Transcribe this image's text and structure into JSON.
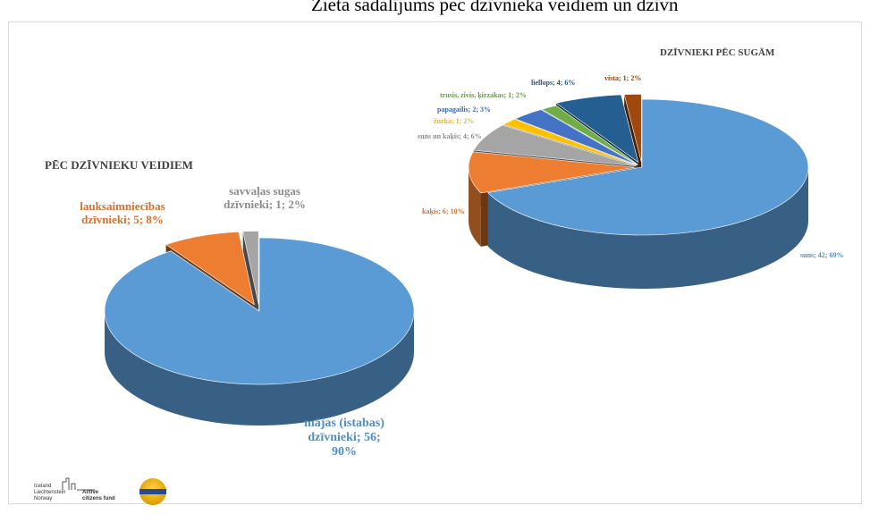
{
  "page_title": "Zieta sadalījums pēc dzīvnieka veidiem un dzīvn",
  "footer": {
    "logo_lines": [
      "Iceland",
      "Liechtenstein",
      "Norway"
    ],
    "logo_active": "Active",
    "logo_citizens": "citizens fund"
  },
  "chart_data": [
    {
      "type": "pie",
      "title": "PĒC DZĪVNIEKU VEIDIEM",
      "slices": [
        {
          "label": "mājas (istabas) dzīvnieki",
          "value": 56,
          "percent": 90,
          "color": "#5b9bd5",
          "label_text": [
            "mājas (istabas)",
            "dzīvnieki; 56;",
            "90%"
          ]
        },
        {
          "label": "lauksaimniecības dzīvnieki",
          "value": 5,
          "percent": 8,
          "color": "#ed7d31",
          "label_text": [
            "lauksaimniecības",
            "dzīvnieki; 5; 8%"
          ]
        },
        {
          "label": "savvaļas sugas dzīvnieki",
          "value": 1,
          "percent": 2,
          "color": "#a5a5a5",
          "label_text": [
            "savvaļas sugas",
            "dzīvnieki; 1; 2%"
          ]
        }
      ]
    },
    {
      "type": "pie",
      "title": "DZĪVNIEKI PĒC SUGĀM",
      "slices": [
        {
          "label": "suns",
          "value": 42,
          "percent": 69,
          "color": "#5b9bd5",
          "label_text": [
            "suns; 42; 69%"
          ]
        },
        {
          "label": "kaķis",
          "value": 6,
          "percent": 10,
          "color": "#ed7d31",
          "label_text": [
            "kaķis; 6; 10%"
          ]
        },
        {
          "label": "suns un kaķis",
          "value": 4,
          "percent": 6,
          "color": "#a5a5a5",
          "label_text": [
            "suns un kaķis; 4; 6%"
          ]
        },
        {
          "label": "žurka",
          "value": 1,
          "percent": 2,
          "color": "#ffc000",
          "label_text": [
            "žurka; 1; 2%"
          ]
        },
        {
          "label": "papagailis",
          "value": 2,
          "percent": 3,
          "color": "#4472c4",
          "label_text": [
            "papagailis; 2; 3%"
          ]
        },
        {
          "label": "trusis, zivis, ķirzakas",
          "value": 1,
          "percent": 2,
          "color": "#70ad47",
          "label_text": [
            "trusis, zivis, ķirzakas; 1; 2%"
          ]
        },
        {
          "label": "liellops",
          "value": 4,
          "percent": 6,
          "color": "#255e91",
          "label_text": [
            "liellops; 4; 6%"
          ]
        },
        {
          "label": "vista",
          "value": 1,
          "percent": 2,
          "color": "#9e480e",
          "label_text": [
            "vista; 1; 2%"
          ]
        }
      ]
    }
  ]
}
